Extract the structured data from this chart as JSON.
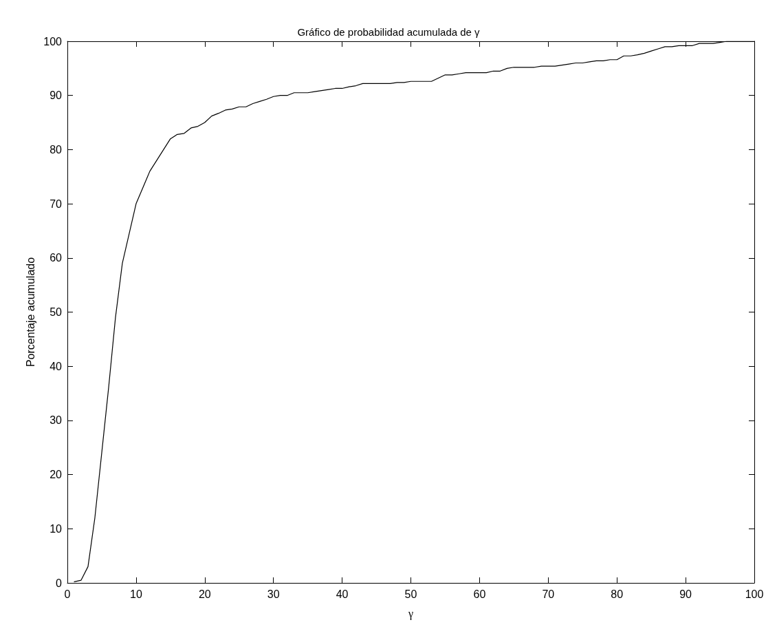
{
  "chart_data": {
    "type": "line",
    "title": "Gráfico de probabilidad acumulada de γ",
    "xlabel": "γ",
    "ylabel": "Porcentaje acumulado",
    "x": [
      1,
      2,
      3,
      4,
      5,
      6,
      7,
      8,
      9,
      10,
      11,
      12,
      13,
      14,
      15,
      16,
      17,
      18,
      19,
      20,
      21,
      22,
      23,
      24,
      25,
      26,
      27,
      28,
      29,
      30,
      31,
      32,
      33,
      34,
      35,
      36,
      37,
      38,
      39,
      40,
      41,
      42,
      43,
      44,
      45,
      46,
      47,
      48,
      49,
      50,
      51,
      52,
      53,
      54,
      55,
      56,
      57,
      58,
      59,
      60,
      61,
      62,
      63,
      64,
      65,
      66,
      67,
      68,
      69,
      70,
      71,
      72,
      73,
      74,
      75,
      76,
      77,
      78,
      79,
      80,
      81,
      82,
      83,
      84,
      85,
      86,
      87,
      88,
      89,
      90,
      91,
      92,
      93,
      94,
      95,
      96,
      97,
      98,
      99,
      100
    ],
    "series": [
      {
        "color": "#000000",
        "values": [
          0.2,
          0.5,
          3,
          12,
          24,
          36,
          49,
          59,
          64.5,
          70,
          73,
          76,
          78,
          80,
          82,
          82.8,
          83,
          84,
          84.3,
          85,
          86.2,
          86.7,
          87.3,
          87.5,
          87.9,
          87.9,
          88.5,
          88.9,
          89.3,
          89.8,
          90,
          90,
          90.5,
          90.5,
          90.5,
          90.7,
          90.9,
          91.1,
          91.3,
          91.3,
          91.6,
          91.8,
          92.2,
          92.2,
          92.2,
          92.2,
          92.2,
          92.4,
          92.4,
          92.6,
          92.6,
          92.6,
          92.6,
          93.2,
          93.8,
          93.8,
          94,
          94.2,
          94.2,
          94.2,
          94.2,
          94.5,
          94.5,
          95,
          95.2,
          95.2,
          95.2,
          95.2,
          95.4,
          95.4,
          95.4,
          95.6,
          95.8,
          96,
          96,
          96.2,
          96.4,
          96.4,
          96.6,
          96.6,
          97.3,
          97.3,
          97.5,
          97.8,
          98.2,
          98.6,
          99,
          99,
          99.2,
          99.2,
          99.2,
          99.6,
          99.6,
          99.6,
          99.8,
          100,
          100,
          100,
          100,
          100
        ]
      }
    ],
    "xlim": [
      0,
      100
    ],
    "xticks": [
      0,
      10,
      20,
      30,
      40,
      50,
      60,
      70,
      80,
      90,
      100
    ],
    "ylim": [
      0,
      100
    ],
    "yticks": [
      0,
      10,
      20,
      30,
      40,
      50,
      60,
      70,
      80,
      90,
      100
    ],
    "grid": false,
    "marker": "none",
    "line_style": "solid"
  }
}
